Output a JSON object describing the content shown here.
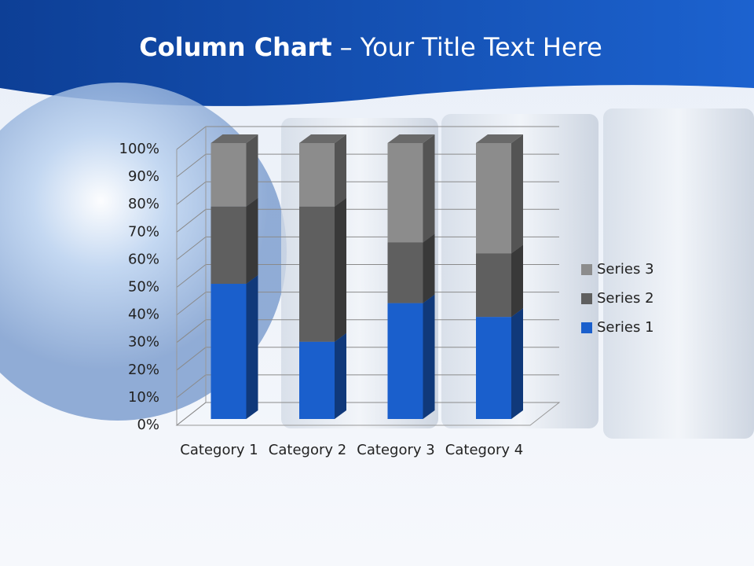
{
  "chart_data": {
    "type": "stacked_bar_3d",
    "title_parts": [
      "Column Chart",
      "– Your Title Text Here"
    ],
    "categories": [
      "Category 1",
      "Category 2",
      "Category 3",
      "Category 4"
    ],
    "series": [
      {
        "name": "Series 1",
        "color": "#1a5fcc",
        "values": [
          49,
          28,
          42,
          37
        ]
      },
      {
        "name": "Series 2",
        "color": "#5f5f5f",
        "values": [
          28,
          49,
          22,
          23
        ]
      },
      {
        "name": "Series 3",
        "color": "#8c8c8c",
        "values": [
          23,
          23,
          36,
          40
        ]
      }
    ],
    "ylim": [
      0,
      100
    ],
    "yticks": [
      {
        "value": 0,
        "label": "0%"
      },
      {
        "value": 10,
        "label": "10%"
      },
      {
        "value": 20,
        "label": "20%"
      },
      {
        "value": 30,
        "label": "30%"
      },
      {
        "value": 40,
        "label": "40%"
      },
      {
        "value": 50,
        "label": "50%"
      },
      {
        "value": 60,
        "label": "60%"
      },
      {
        "value": 70,
        "label": "70%"
      },
      {
        "value": 80,
        "label": "80%"
      },
      {
        "value": 90,
        "label": "90%"
      },
      {
        "value": 100,
        "label": "100%"
      }
    ],
    "grid": true,
    "legend": "right"
  }
}
